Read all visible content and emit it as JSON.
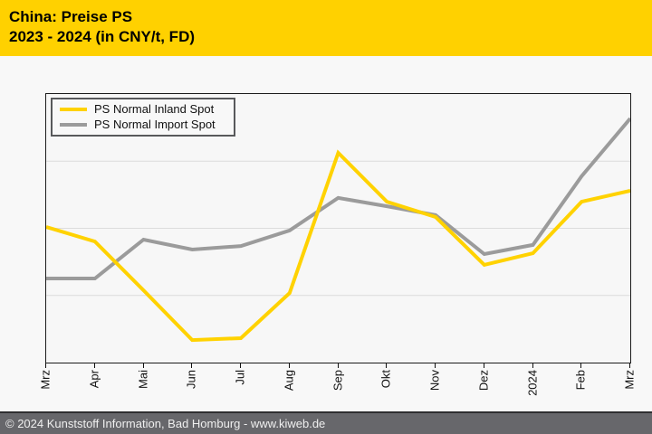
{
  "header": {
    "title_line1": "China: Preise PS",
    "title_line2": "2023 - 2024 (in CNY/t, FD)",
    "background_color": "#FFD100",
    "text_color": "#000000"
  },
  "footer": {
    "text": "© 2024 Kunststoff Information, Bad Homburg - www.kiweb.de",
    "background_color": "#67676B",
    "text_color": "#EFEFEF"
  },
  "chart_data": {
    "type": "line",
    "title": "China: Preise PS 2023 - 2024 (in CNY/t, FD)",
    "xlabel": "",
    "ylabel": "",
    "categories": [
      "Mrz",
      "Apr",
      "Mai",
      "Jun",
      "Jul",
      "Aug",
      "Sep",
      "Okt",
      "Nov",
      "Dez",
      "2024",
      "Feb",
      "Mrz"
    ],
    "series": [
      {
        "name": "PS Normal Inland Spot",
        "color": "#FFD200",
        "values": [
          50.5,
          45.1,
          26.9,
          8.4,
          9.1,
          25.9,
          78.1,
          59.9,
          54.2,
          36.4,
          40.7,
          59.9,
          64.0
        ]
      },
      {
        "name": "PS Normal Import Spot",
        "color": "#9B9B9B",
        "values": [
          31.3,
          31.3,
          45.8,
          42.1,
          43.4,
          49.2,
          61.3,
          58.2,
          54.9,
          40.4,
          43.8,
          69.4,
          90.9
        ]
      }
    ],
    "y_axis": {
      "labels_visible": false,
      "scale_note": "No y-axis tick labels in source image; values are percent of plot height measured from the bottom axis",
      "ylim": [
        0,
        100
      ],
      "gridlines_at": [
        25,
        50,
        75
      ]
    },
    "x_axis": {
      "tick_marks": true,
      "label_rotation_deg": 90
    },
    "legend_position": "top-left",
    "grid": true
  }
}
